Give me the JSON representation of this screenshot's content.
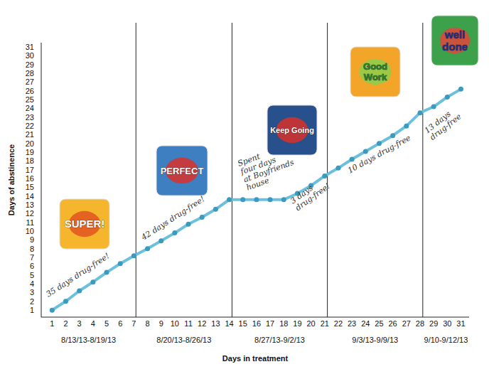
{
  "chart_data": {
    "type": "line",
    "x_label": "Days in treatment",
    "y_label": "Days of abstinence",
    "x": [
      1,
      2,
      3,
      4,
      5,
      6,
      7,
      8,
      9,
      10,
      11,
      12,
      13,
      14,
      15,
      16,
      17,
      18,
      19,
      20,
      21,
      22,
      23,
      24,
      25,
      26,
      27,
      28,
      29,
      30,
      31
    ],
    "series": [
      {
        "color": "#6cc0dc",
        "marker": "circle",
        "line_style": "solid",
        "values": [
          1,
          2,
          3.2,
          4.2,
          5.3,
          6.3,
          7.2,
          8,
          8.9,
          9.8,
          10.8,
          11.6,
          12.5,
          13.6,
          13.6,
          13.6,
          13.6,
          13.6,
          14.3,
          15.2,
          16.3,
          17.2,
          18.2,
          19.1,
          20,
          20.9,
          22,
          23.5,
          24.2,
          25.3,
          26.2
        ]
      }
    ],
    "xlim": [
      0.2,
      31.6
    ],
    "ylim": [
      0.2,
      31.5
    ],
    "xticks": [
      1,
      2,
      3,
      4,
      5,
      6,
      7,
      8,
      9,
      10,
      11,
      12,
      13,
      14,
      15,
      16,
      17,
      18,
      19,
      20,
      21,
      22,
      23,
      24,
      25,
      26,
      27,
      28,
      29,
      30,
      31
    ],
    "yticks": [
      1,
      2,
      3,
      4,
      5,
      6,
      7,
      8,
      9,
      10,
      11,
      12,
      13,
      14,
      15,
      16,
      17,
      18,
      19,
      20,
      21,
      22,
      23,
      24,
      25,
      26,
      27,
      28,
      29,
      30,
      31
    ],
    "grid": false,
    "phase_lines": [
      7.15,
      14.2,
      21.2,
      28.2
    ],
    "phase_labels": [
      "8/13/13-8/19/13",
      "8/20/13-8/26/13",
      "8/27/13-9/2/13",
      "9/3/13-9/9/13",
      "9/10-9/12/13"
    ],
    "annotations": [
      [
        "35 days drug-free!"
      ],
      [
        "42 days drug-free!"
      ],
      [
        "Spent",
        "four days",
        "at Boyfriends",
        "house"
      ],
      [
        "3 days",
        "drug-free!"
      ],
      [
        "10 days drug-free"
      ],
      [
        "13 days",
        "drug-free"
      ]
    ],
    "stickers": [
      [
        "SUPER!"
      ],
      [
        "PERFECT"
      ],
      [
        "Keep Going"
      ],
      [
        "Good",
        "Work"
      ],
      [
        "well",
        "done"
      ]
    ]
  }
}
